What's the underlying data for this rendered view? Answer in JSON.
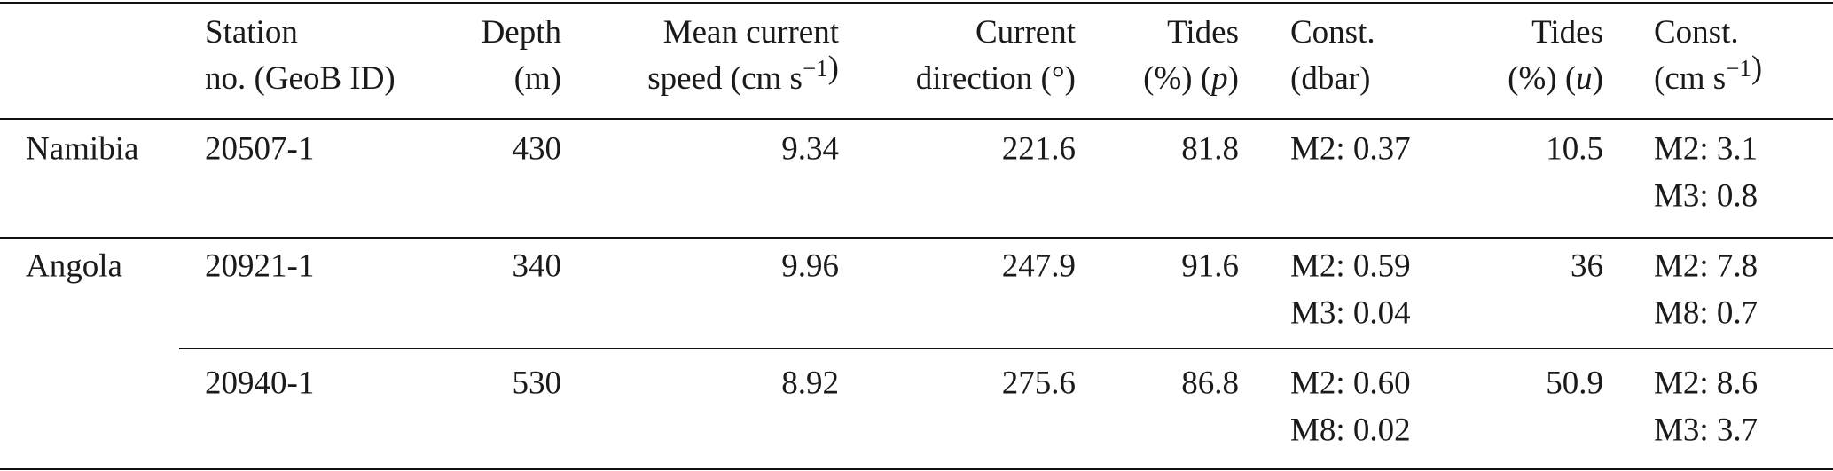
{
  "table": {
    "header": [
      {
        "lines": [
          [
            "Station"
          ],
          [
            "no. (GeoB ID)"
          ]
        ]
      },
      {
        "lines": [
          [
            "Depth"
          ],
          [
            "(m)"
          ]
        ]
      },
      {
        "lines": [
          [
            "Mean current"
          ],
          [
            "speed (cm s",
            {
              "sup": "−1"
            },
            ")"
          ]
        ]
      },
      {
        "lines": [
          [
            "Current"
          ],
          [
            "direction (°)"
          ]
        ]
      },
      {
        "lines": [
          [
            "Tides"
          ],
          [
            "(%) (",
            {
              "i": "p"
            },
            ")"
          ]
        ]
      },
      {
        "lines": [
          [
            "Const."
          ],
          [
            "(dbar)"
          ]
        ]
      },
      {
        "lines": [
          [
            "Tides"
          ],
          [
            "(%) (",
            {
              "i": "u"
            },
            ")"
          ]
        ]
      },
      {
        "lines": [
          [
            "Const."
          ],
          [
            "(cm s",
            {
              "sup": "−1"
            },
            ")"
          ]
        ]
      }
    ],
    "rows": [
      {
        "region": "Namibia",
        "cells": [
          "20507-1",
          430,
          9.34,
          221.6,
          81.8,
          [
            "M2: 0.37"
          ],
          10.5,
          [
            "M2: 3.1",
            "M3: 0.8"
          ]
        ]
      },
      {
        "region": "Angola",
        "cells": [
          "20921-1",
          340,
          9.96,
          247.9,
          91.6,
          [
            "M2: 0.59",
            "M3: 0.04"
          ],
          36,
          [
            "M2: 7.8",
            "M8: 0.7"
          ]
        ]
      },
      {
        "cells": [
          "20940-1",
          530,
          8.92,
          275.6,
          86.8,
          [
            "M2: 0.60",
            "M8: 0.02"
          ],
          50.9,
          [
            "M2: 8.6",
            "M3: 3.7"
          ]
        ]
      }
    ]
  }
}
